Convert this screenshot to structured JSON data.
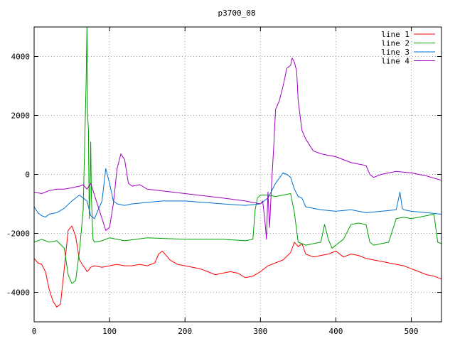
{
  "chart_data": {
    "type": "line",
    "title": "p3700_08",
    "xlim": [
      0,
      540
    ],
    "ylim": [
      -5000,
      5000
    ],
    "xticks": [
      0,
      100,
      200,
      300,
      400,
      500
    ],
    "yticks": [
      -4000,
      -2000,
      0,
      2000,
      4000
    ],
    "grid": true,
    "legend_position": "top-right",
    "series": [
      {
        "name": "line 1",
        "color": "#ff0000",
        "x": [
          0,
          5,
          10,
          15,
          20,
          25,
          30,
          35,
          40,
          45,
          50,
          55,
          60,
          65,
          68,
          70,
          72,
          75,
          80,
          90,
          100,
          110,
          120,
          130,
          140,
          150,
          160,
          165,
          170,
          175,
          180,
          190,
          200,
          210,
          220,
          230,
          240,
          250,
          260,
          270,
          280,
          290,
          300,
          310,
          320,
          330,
          340,
          345,
          350,
          355,
          360,
          370,
          380,
          390,
          400,
          410,
          420,
          430,
          440,
          450,
          460,
          470,
          480,
          490,
          500,
          510,
          520,
          530,
          540
        ],
        "y": [
          -2850,
          -3000,
          -3050,
          -3300,
          -3900,
          -4300,
          -4500,
          -4400,
          -3200,
          -1900,
          -1750,
          -2100,
          -2900,
          -3100,
          -3200,
          -3300,
          -3250,
          -3150,
          -3100,
          -3150,
          -3100,
          -3050,
          -3100,
          -3100,
          -3050,
          -3100,
          -3000,
          -2700,
          -2600,
          -2750,
          -2900,
          -3050,
          -3100,
          -3150,
          -3200,
          -3300,
          -3400,
          -3350,
          -3300,
          -3350,
          -3500,
          -3450,
          -3300,
          -3100,
          -3000,
          -2900,
          -2650,
          -2300,
          -2450,
          -2350,
          -2700,
          -2800,
          -2750,
          -2700,
          -2600,
          -2800,
          -2700,
          -2750,
          -2850,
          -2900,
          -2950,
          -3000,
          -3050,
          -3100,
          -3200,
          -3300,
          -3400,
          -3450,
          -3550
        ]
      },
      {
        "name": "line 2",
        "color": "#00a000",
        "x": [
          0,
          10,
          20,
          30,
          40,
          45,
          50,
          55,
          60,
          63,
          65,
          67,
          69,
          70,
          71,
          72,
          73,
          74,
          75,
          76,
          77,
          78,
          80,
          90,
          100,
          120,
          150,
          200,
          250,
          280,
          290,
          293,
          296,
          300,
          310,
          320,
          330,
          340,
          345,
          350,
          360,
          370,
          380,
          385,
          390,
          395,
          400,
          410,
          420,
          430,
          440,
          445,
          450,
          460,
          470,
          480,
          490,
          500,
          510,
          520,
          530,
          535,
          540
        ],
        "y": [
          -2300,
          -2200,
          -2300,
          -2250,
          -2500,
          -3400,
          -3700,
          -3600,
          -2600,
          -1800,
          -1200,
          1000,
          3200,
          5000,
          2000,
          1500,
          -1500,
          -600,
          1100,
          -800,
          -1500,
          -2200,
          -2300,
          -2250,
          -2150,
          -2250,
          -2150,
          -2200,
          -2200,
          -2250,
          -2200,
          -1200,
          -800,
          -700,
          -700,
          -750,
          -700,
          -650,
          -1300,
          -2300,
          -2400,
          -2350,
          -2300,
          -1700,
          -2200,
          -2500,
          -2400,
          -2200,
          -1700,
          -1650,
          -1700,
          -2300,
          -2400,
          -2350,
          -2300,
          -1500,
          -1450,
          -1500,
          -1450,
          -1400,
          -1350,
          -2300,
          -2350
        ]
      },
      {
        "name": "line 3",
        "color": "#0070d0",
        "x": [
          0,
          5,
          10,
          15,
          20,
          30,
          40,
          50,
          60,
          65,
          70,
          75,
          80,
          90,
          95,
          100,
          105,
          110,
          120,
          130,
          150,
          170,
          200,
          250,
          280,
          300,
          310,
          320,
          330,
          335,
          340,
          345,
          350,
          355,
          360,
          370,
          380,
          400,
          420,
          440,
          460,
          480,
          485,
          488,
          490,
          500,
          520,
          540
        ],
        "y": [
          -1100,
          -1300,
          -1400,
          -1450,
          -1350,
          -1300,
          -1150,
          -900,
          -700,
          -800,
          -900,
          -1400,
          -1500,
          -900,
          200,
          -300,
          -900,
          -1000,
          -1050,
          -1000,
          -950,
          -900,
          -900,
          -1000,
          -1050,
          -1000,
          -800,
          -300,
          50,
          0,
          -100,
          -500,
          -750,
          -800,
          -1100,
          -1150,
          -1200,
          -1250,
          -1200,
          -1300,
          -1250,
          -1200,
          -600,
          -1150,
          -1200,
          -1250,
          -1300,
          -1350
        ]
      },
      {
        "name": "line 4",
        "color": "#a000c0",
        "x": [
          0,
          10,
          20,
          30,
          40,
          50,
          60,
          65,
          70,
          75,
          80,
          90,
          95,
          100,
          105,
          110,
          115,
          120,
          125,
          130,
          140,
          150,
          200,
          250,
          280,
          300,
          303,
          306,
          308,
          310,
          312,
          315,
          318,
          320,
          325,
          330,
          335,
          340,
          342,
          345,
          348,
          350,
          355,
          360,
          370,
          380,
          400,
          420,
          440,
          445,
          450,
          460,
          480,
          500,
          520,
          540
        ],
        "y": [
          -600,
          -650,
          -550,
          -500,
          -500,
          -450,
          -400,
          -350,
          -500,
          -300,
          -700,
          -1500,
          -1900,
          -1800,
          -1000,
          200,
          700,
          500,
          -300,
          -400,
          -350,
          -500,
          -650,
          -800,
          -900,
          -1000,
          -900,
          -1600,
          -2200,
          -600,
          -1800,
          -200,
          1100,
          2200,
          2500,
          3000,
          3600,
          3700,
          3950,
          3800,
          3500,
          2500,
          1500,
          1200,
          800,
          700,
          600,
          400,
          300,
          0,
          -100,
          0,
          100,
          50,
          -50,
          -200
        ]
      }
    ]
  }
}
